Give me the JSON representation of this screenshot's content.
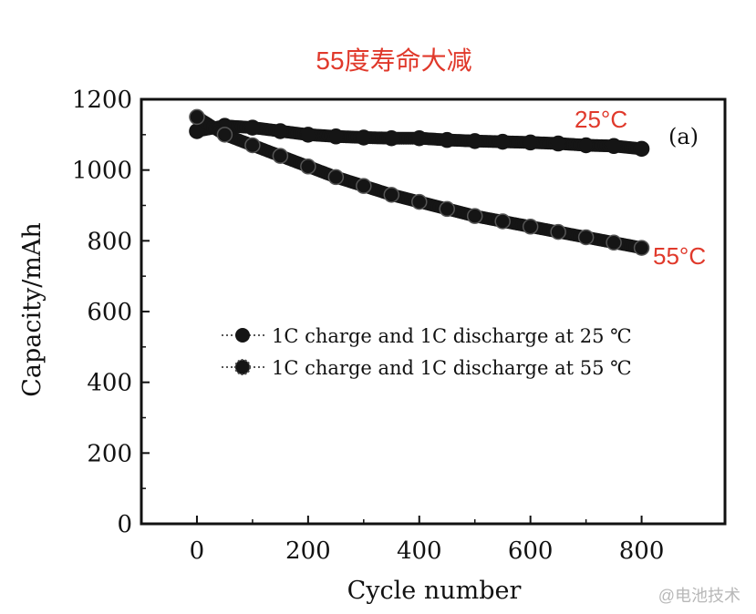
{
  "chart_data": {
    "type": "scatter",
    "title": "55度寿命大减",
    "xlabel": "Cycle number",
    "ylabel": "Capacity/mAh",
    "xlim": [
      -100,
      950
    ],
    "ylim": [
      0,
      1200
    ],
    "x_ticks": [
      0,
      200,
      400,
      600,
      800
    ],
    "y_ticks": [
      0,
      200,
      400,
      600,
      800,
      1000,
      1200
    ],
    "x_tick_labels": [
      "0",
      "200",
      "400",
      "600",
      "800"
    ],
    "y_tick_labels": [
      "0",
      "200",
      "400",
      "600",
      "800",
      "1000",
      "1200"
    ],
    "panel_label": "(a)",
    "grid": false,
    "legend_position": "center",
    "series": [
      {
        "name": "1C charge and 1C discharge at 25 ℃",
        "marker": "filled-circle",
        "x": [
          0,
          50,
          100,
          150,
          200,
          250,
          300,
          350,
          400,
          450,
          500,
          550,
          600,
          650,
          700,
          750,
          800
        ],
        "y": [
          1110,
          1125,
          1120,
          1110,
          1100,
          1095,
          1092,
          1090,
          1090,
          1085,
          1082,
          1080,
          1078,
          1075,
          1070,
          1068,
          1060
        ]
      },
      {
        "name": "1C charge and 1C discharge at 55 ℃",
        "marker": "patterned-circle",
        "x": [
          0,
          50,
          100,
          150,
          200,
          250,
          300,
          350,
          400,
          450,
          500,
          550,
          600,
          650,
          700,
          750,
          800
        ],
        "y": [
          1150,
          1100,
          1070,
          1040,
          1010,
          980,
          955,
          930,
          910,
          890,
          870,
          855,
          840,
          825,
          810,
          795,
          780
        ]
      }
    ],
    "annotations": [
      {
        "text": "25°C",
        "color": "#e0392b",
        "near_series": 0
      },
      {
        "text": "55°C",
        "color": "#e0392b",
        "near_series": 1
      }
    ]
  },
  "colors": {
    "annotation": "#e0392b",
    "axis": "#111111",
    "marker": "#151515",
    "watermark": "#b8b8b8"
  },
  "watermark": "@电池技术"
}
